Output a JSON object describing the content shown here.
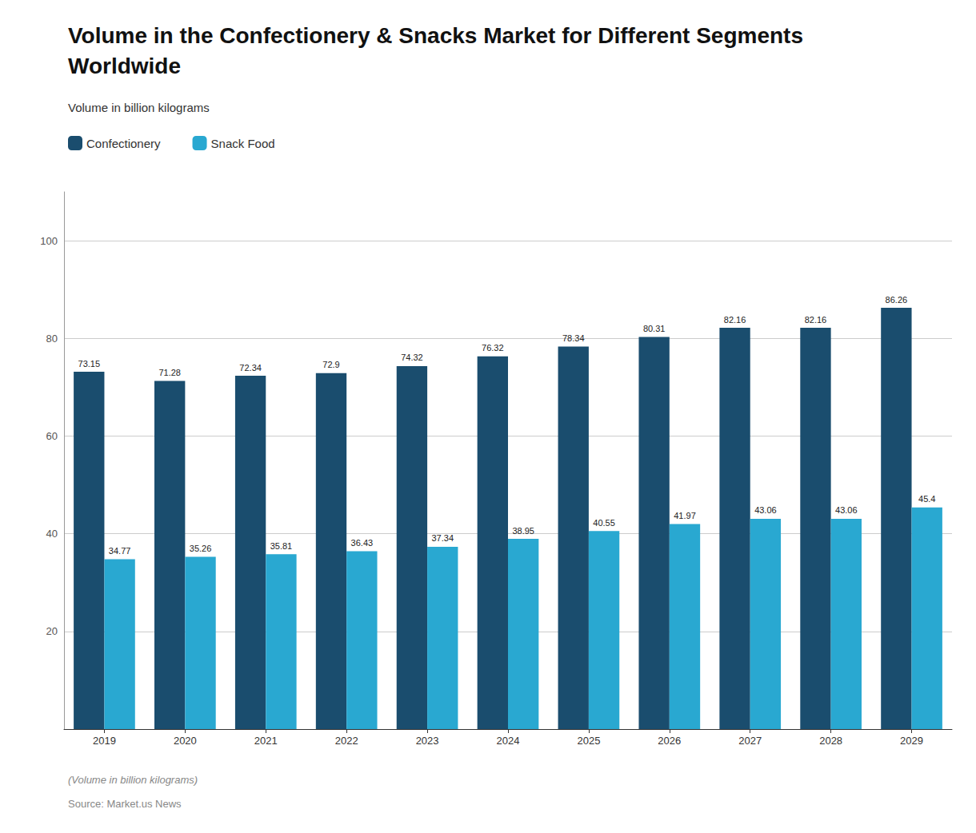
{
  "chart_data": {
    "type": "bar",
    "title": "Volume in the Confectionery & Snacks Market for Different Segments Worldwide",
    "subtitle": "Volume in billion kilograms",
    "annotations": [
      "(Volume in billion kilograms)",
      "Source: Market.us News"
    ],
    "categories": [
      "2019",
      "2020",
      "2021",
      "2022",
      "2023",
      "2024",
      "2025",
      "2026",
      "2027",
      "2028",
      "2029"
    ],
    "series": [
      {
        "name": "Confectionery",
        "color": "#1a4d6e",
        "values": [
          73.15,
          71.28,
          72.34,
          72.9,
          74.32,
          76.32,
          78.34,
          80.31,
          82.16,
          82.16,
          86.26
        ]
      },
      {
        "name": "Snack Food",
        "color": "#29a8d1",
        "values": [
          34.77,
          35.26,
          35.81,
          36.43,
          37.34,
          38.95,
          40.55,
          41.97,
          43.06,
          43.06,
          45.4
        ]
      }
    ],
    "ylim": [
      0,
      110
    ],
    "yticks": [
      20,
      40,
      60,
      80,
      100
    ],
    "grid": true,
    "legend": "top-left",
    "data_labels": true
  }
}
